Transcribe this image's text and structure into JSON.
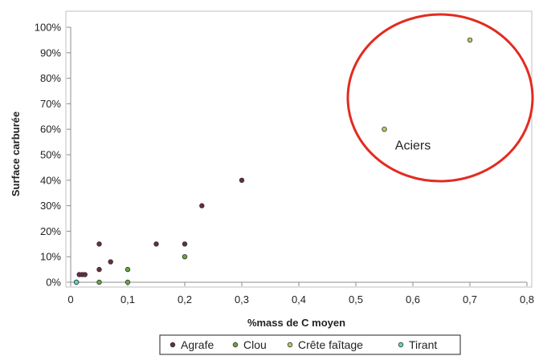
{
  "chart_data": {
    "type": "scatter",
    "xlabel": "%mass de C moyen",
    "ylabel": "Surface carburée",
    "xlim": [
      0,
      0.8
    ],
    "ylim": [
      0,
      1.0
    ],
    "grid": false,
    "legend_position": "bottom",
    "x_ticks": [
      "0",
      "0,1",
      "0,2",
      "0,3",
      "0,4",
      "0,5",
      "0,6",
      "0,7",
      "0,8"
    ],
    "y_ticks": [
      "0%",
      "10%",
      "20%",
      "30%",
      "40%",
      "50%",
      "60%",
      "70%",
      "80%",
      "90%",
      "100%"
    ],
    "series": [
      {
        "name": "Agrafe",
        "color": "#6b2a48",
        "points": [
          [
            0.015,
            0.03
          ],
          [
            0.02,
            0.03
          ],
          [
            0.025,
            0.03
          ],
          [
            0.05,
            0.05
          ],
          [
            0.05,
            0.15
          ],
          [
            0.07,
            0.08
          ],
          [
            0.15,
            0.15
          ],
          [
            0.2,
            0.15
          ],
          [
            0.23,
            0.3
          ],
          [
            0.3,
            0.4
          ]
        ]
      },
      {
        "name": "Clou",
        "color": "#66a83c",
        "points": [
          [
            0.01,
            0.0
          ],
          [
            0.05,
            0.0
          ],
          [
            0.1,
            0.0
          ],
          [
            0.1,
            0.05
          ],
          [
            0.2,
            0.1
          ]
        ]
      },
      {
        "name": "Crête faîtage",
        "color": "#b8c86a",
        "points": [
          [
            0.55,
            0.6
          ],
          [
            0.7,
            0.95
          ]
        ]
      },
      {
        "name": "Tirant",
        "color": "#5fd8c0",
        "points": [
          [
            0.01,
            0.0
          ]
        ]
      }
    ],
    "annotations": [
      {
        "text": "Aciers",
        "x": 0.6,
        "y": 0.52
      }
    ]
  }
}
